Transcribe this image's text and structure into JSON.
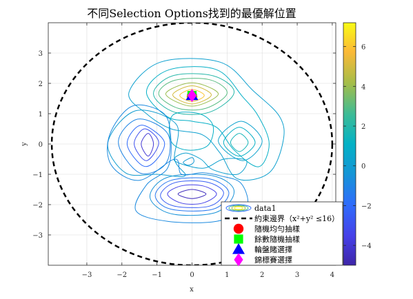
{
  "chart_data": {
    "type": "contour",
    "title": "不同Selection Options找到的最優解位置",
    "xlabel": "x",
    "ylabel": "y",
    "xlim": [
      -4.1,
      4.1
    ],
    "ylim": [
      -4,
      4
    ],
    "xticks": [
      -3,
      -2,
      -1,
      0,
      1,
      2,
      3,
      4
    ],
    "xtick_labels": [
      "−3",
      "−2",
      "−1",
      "0",
      "1",
      "2",
      "3",
      "4"
    ],
    "yticks": [
      -3,
      -2,
      -1,
      0,
      1,
      2,
      3
    ],
    "ytick_labels": [
      "−3",
      "−2",
      "−1",
      "0",
      "1",
      "2",
      "3"
    ],
    "grid": true,
    "colorbar": {
      "colormap": "parula",
      "clim": [
        -5,
        7.2
      ],
      "ticks": [
        -4,
        -2,
        0,
        2,
        4,
        6
      ],
      "tick_labels": [
        "−4",
        "−2",
        "0",
        "2",
        "4",
        "6"
      ]
    },
    "contours": [
      {
        "level": -4.5,
        "points": [
          [
            -0.4,
            -1.65
          ],
          [
            0,
            -1.5
          ],
          [
            0.4,
            -1.65
          ],
          [
            0,
            -1.8
          ]
        ]
      },
      {
        "level": -3.5,
        "points": [
          [
            -0.7,
            -1.65
          ],
          [
            -0.3,
            -1.38
          ],
          [
            0.3,
            -1.38
          ],
          [
            0.7,
            -1.65
          ],
          [
            0.3,
            -1.95
          ],
          [
            -0.3,
            -1.95
          ]
        ]
      },
      {
        "level": -2.5,
        "points": [
          [
            -0.9,
            -1.7
          ],
          [
            -0.5,
            -1.28
          ],
          [
            0.4,
            -1.25
          ],
          [
            0.9,
            -1.6
          ],
          [
            0.5,
            -2.05
          ],
          [
            -0.5,
            -2.05
          ]
        ]
      },
      {
        "level": -1.5,
        "points": [
          [
            -1.05,
            -1.7
          ],
          [
            -0.6,
            -1.2
          ],
          [
            0.5,
            -1.15
          ],
          [
            1.05,
            -1.6
          ],
          [
            0.6,
            -2.15
          ],
          [
            -0.6,
            -2.15
          ]
        ]
      },
      {
        "level": -0.5,
        "points": [
          [
            -1.2,
            -1.75
          ],
          [
            -0.7,
            -1.1
          ],
          [
            0.6,
            -1.05
          ],
          [
            1.2,
            -1.55
          ],
          [
            0.7,
            -2.25
          ],
          [
            -0.6,
            -2.3
          ]
        ]
      },
      {
        "level": -4.0,
        "points": [
          [
            -1.45,
            0
          ],
          [
            -1.25,
            0.35
          ],
          [
            -1.1,
            0
          ],
          [
            -1.25,
            -0.4
          ]
        ]
      },
      {
        "level": -3.0,
        "points": [
          [
            -1.65,
            0
          ],
          [
            -1.35,
            0.5
          ],
          [
            -0.95,
            0.05
          ],
          [
            -1.3,
            -0.55
          ]
        ]
      },
      {
        "level": -2.0,
        "points": [
          [
            -1.85,
            0
          ],
          [
            -1.45,
            0.62
          ],
          [
            -0.8,
            0.1
          ],
          [
            -1.0,
            -0.5
          ],
          [
            -1.4,
            -0.72
          ]
        ]
      },
      {
        "level": -1.0,
        "points": [
          [
            -2.1,
            0.05
          ],
          [
            -1.55,
            0.82
          ],
          [
            -0.7,
            0.35
          ],
          [
            -0.75,
            -0.65
          ],
          [
            -1.5,
            -0.95
          ]
        ]
      },
      {
        "level": 0.0,
        "points": [
          [
            -2.4,
            0.05
          ],
          [
            -1.6,
            1.1
          ],
          [
            -0.45,
            0.65
          ],
          [
            -0.5,
            -0.5
          ],
          [
            -0.2,
            -1.05
          ],
          [
            -1.0,
            -1.0
          ],
          [
            -1.9,
            -0.95
          ]
        ]
      },
      {
        "level": -0.2,
        "points": [
          [
            -0.25,
            -0.6
          ],
          [
            0,
            -0.45
          ],
          [
            0.05,
            -0.6
          ],
          [
            -0.1,
            -0.7
          ]
        ]
      },
      {
        "level": 0.2,
        "points": [
          [
            -0.5,
            -0.55
          ],
          [
            -0.2,
            -0.3
          ],
          [
            0.25,
            -0.5
          ],
          [
            0.6,
            -0.85
          ],
          [
            1.3,
            -1.0
          ],
          [
            1.55,
            -0.55
          ],
          [
            0.9,
            -0.5
          ],
          [
            0.3,
            -0.8
          ]
        ]
      },
      {
        "level": 1.0,
        "points": [
          [
            -0.55,
            0.95
          ],
          [
            -0.6,
            0.1
          ],
          [
            -0.15,
            -0.2
          ],
          [
            0.45,
            -0.05
          ],
          [
            0.6,
            0.6
          ],
          [
            0.2,
            1.0
          ]
        ]
      },
      {
        "level": 1.5,
        "points": [
          [
            1.1,
            0.05
          ],
          [
            1.35,
            0.35
          ],
          [
            1.6,
            0.05
          ],
          [
            1.35,
            -0.25
          ]
        ]
      },
      {
        "level": 1.0,
        "points": [
          [
            0.9,
            0.05
          ],
          [
            1.35,
            0.55
          ],
          [
            1.8,
            0.05
          ],
          [
            1.35,
            -0.4
          ]
        ]
      },
      {
        "level": 0.3,
        "points": [
          [
            0.75,
            0.1
          ],
          [
            1.4,
            0.75
          ],
          [
            2.0,
            0.1
          ],
          [
            1.45,
            -0.55
          ]
        ]
      },
      {
        "level": 7.0,
        "points": [
          [
            -0.15,
            1.55
          ],
          [
            0,
            1.68
          ],
          [
            0.15,
            1.55
          ],
          [
            0,
            1.45
          ]
        ]
      },
      {
        "level": 6.0,
        "points": [
          [
            -0.35,
            1.6
          ],
          [
            0,
            1.8
          ],
          [
            0.35,
            1.6
          ],
          [
            0,
            1.4
          ]
        ]
      },
      {
        "level": 5.0,
        "points": [
          [
            -0.55,
            1.62
          ],
          [
            0,
            1.92
          ],
          [
            0.55,
            1.62
          ],
          [
            0,
            1.32
          ]
        ]
      },
      {
        "level": 4.0,
        "points": [
          [
            -0.75,
            1.65
          ],
          [
            0,
            2.02
          ],
          [
            0.75,
            1.65
          ],
          [
            0,
            1.25
          ]
        ]
      },
      {
        "level": 3.0,
        "points": [
          [
            -0.95,
            1.65
          ],
          [
            -0.5,
            2.1
          ],
          [
            0.5,
            2.12
          ],
          [
            1.0,
            1.68
          ],
          [
            0.4,
            1.18
          ],
          [
            -0.4,
            1.18
          ]
        ]
      },
      {
        "level": 2.0,
        "points": [
          [
            -1.1,
            1.65
          ],
          [
            -0.55,
            2.25
          ],
          [
            0.6,
            2.25
          ],
          [
            1.2,
            1.7
          ],
          [
            0.5,
            1.05
          ],
          [
            -0.5,
            1.05
          ]
        ]
      },
      {
        "level": 1.0,
        "points": [
          [
            -1.3,
            1.72
          ],
          [
            -0.65,
            2.45
          ],
          [
            0.7,
            2.45
          ],
          [
            1.45,
            1.55
          ],
          [
            1.9,
            0.9
          ],
          [
            2.2,
            0.0
          ],
          [
            1.9,
            -0.75
          ],
          [
            1.2,
            -0.2
          ],
          [
            0.7,
            0.55
          ],
          [
            0.0,
            0.75
          ],
          [
            -0.7,
            0.9
          ]
        ]
      },
      {
        "level": 0.2,
        "points": [
          [
            -1.8,
            1.7
          ],
          [
            -0.9,
            2.7
          ],
          [
            0.8,
            2.7
          ],
          [
            1.75,
            1.75
          ],
          [
            2.5,
            0.9
          ],
          [
            2.6,
            0.1
          ],
          [
            2.2,
            -0.95
          ],
          [
            1.3,
            -1.15
          ],
          [
            0.8,
            -0.3
          ],
          [
            0.3,
            0.3
          ],
          [
            -0.6,
            0.5
          ],
          [
            -1.3,
            1.0
          ]
        ]
      },
      {
        "level": -0.8,
        "points": [
          [
            -2.35,
            0.3
          ],
          [
            -1.7,
            1.25
          ],
          [
            -0.8,
            1.0
          ],
          [
            -0.6,
            0.1
          ],
          [
            -0.7,
            -0.8
          ],
          [
            -1.3,
            -1.35
          ],
          [
            -1.6,
            -2.2
          ],
          [
            -0.7,
            -2.55
          ],
          [
            0.7,
            -2.55
          ],
          [
            1.55,
            -2.1
          ],
          [
            1.4,
            -1.3
          ],
          [
            0.8,
            -1.05
          ],
          [
            0.3,
            -0.95
          ],
          [
            -0.3,
            -1.0
          ],
          [
            -0.5,
            -0.5
          ],
          [
            -1.5,
            -1.2
          ],
          [
            -2.3,
            -0.7
          ]
        ]
      }
    ],
    "constraint_boundary": {
      "shape": "circle",
      "radius": 4
    },
    "markers": [
      {
        "name": "隨機均勻抽樣",
        "x": 0,
        "y": 1.6,
        "shape": "circle",
        "color": "#ff0000"
      },
      {
        "name": "餘數隨機抽樣",
        "x": 0,
        "y": 1.6,
        "shape": "square",
        "color": "#00ff00"
      },
      {
        "name": "輪盤賭選擇",
        "x": 0,
        "y": 1.6,
        "shape": "triangle",
        "color": "#0000ff"
      },
      {
        "name": "錦標賽選擇",
        "x": 0,
        "y": 1.6,
        "shape": "diamond",
        "color": "#ff00ff"
      }
    ],
    "legend": {
      "placement": "bottom-right",
      "entries": [
        {
          "label": "data1",
          "kind": "contour"
        },
        {
          "label": "約束邊界（x²+y² ≤16）",
          "kind": "dashed-line"
        },
        {
          "label": "隨機均勻抽樣",
          "kind": "marker",
          "shape": "circle",
          "color": "#ff0000"
        },
        {
          "label": "餘數隨機抽樣",
          "kind": "marker",
          "shape": "square",
          "color": "#00ff00"
        },
        {
          "label": "輪盤賭選擇",
          "kind": "marker",
          "shape": "triangle",
          "color": "#0000ff"
        },
        {
          "label": "錦標賽選擇",
          "kind": "marker",
          "shape": "diamond",
          "color": "#ff00ff"
        }
      ]
    }
  }
}
